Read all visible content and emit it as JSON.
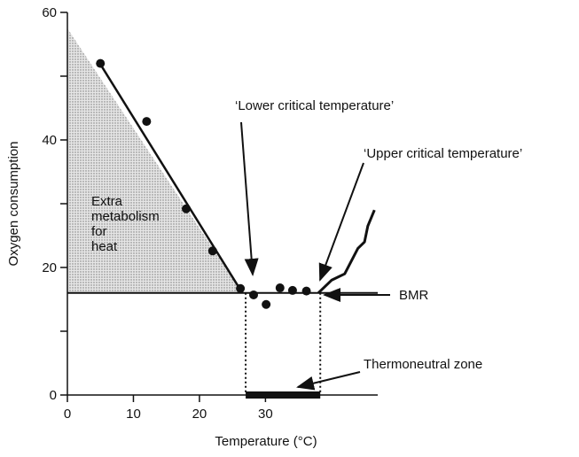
{
  "chart_data": {
    "type": "scatter",
    "x_label": "Temperature (°C)",
    "y_label": "Oxygen consumption",
    "xlim": [
      0,
      47
    ],
    "ylim": [
      0,
      60
    ],
    "xticks": [
      0,
      10,
      20,
      30
    ],
    "yticks": [
      0,
      20,
      40,
      60
    ],
    "yminor_ticks": [
      10,
      30,
      50
    ],
    "points": {
      "x": [
        5,
        12,
        18,
        22,
        26.2,
        28.2,
        30.1,
        32.2,
        34.1,
        36.2
      ],
      "y": [
        52,
        42.9,
        29.2,
        22.6,
        16.7,
        15.7,
        14.2,
        16.8,
        16.4,
        16.3
      ]
    },
    "fit_line": {
      "x": [
        4.8,
        26.5
      ],
      "y": [
        52.2,
        16
      ]
    },
    "bmr_line": {
      "x": [
        0,
        47
      ],
      "y": [
        16,
        16
      ]
    },
    "upper_curve": {
      "x": [
        38,
        40,
        42,
        43,
        44,
        45,
        45.5,
        46.5
      ],
      "y": [
        16,
        18,
        19,
        21,
        23,
        24,
        26.5,
        29
      ]
    },
    "shaded_area": {
      "x": [
        0,
        26.5,
        0
      ],
      "y": [
        57.5,
        16,
        16
      ]
    },
    "zone_bounds": [
      27,
      38.3
    ],
    "thermoneutral_zone": [
      27,
      38.3
    ],
    "annotations": {
      "lower": "‘Lower critical temperature’",
      "upper": "‘Upper critical temperature’",
      "bmr": "BMR",
      "zone": "Thermoneutral zone",
      "extra": [
        "Extra",
        "metabolism",
        "for",
        "heat"
      ]
    }
  }
}
